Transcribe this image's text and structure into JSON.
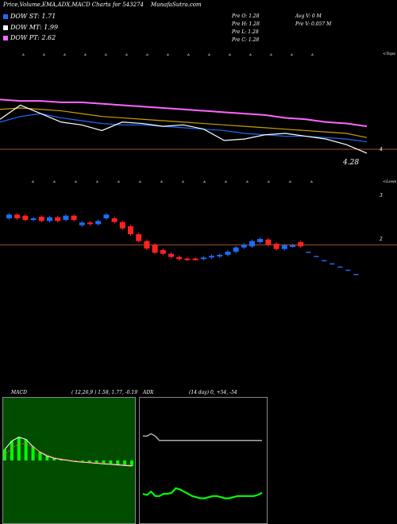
{
  "header": {
    "title": "Price,Volume,EMA,ADX,MACD Charts for 543274",
    "site": "MunafaSutra.com"
  },
  "legend": [
    {
      "label": "DOW ST: 1.71",
      "color": "#1e6bff"
    },
    {
      "label": "DOW MT: 1.99",
      "color": "#ffffff"
    },
    {
      "label": "DOW PT: 2.62",
      "color": "#ff66ff"
    }
  ],
  "stats": {
    "col1": [
      "Pre   O: 1.28",
      "Pre   H: 1.28",
      "Pre   L: 1.28",
      "Pre   C: 1.28"
    ],
    "col2": [
      "Avg V: 0   M",
      "Pre   V: 0.057 M"
    ]
  },
  "chart_data": [
    {
      "type": "line",
      "title": "",
      "axis_labels": {
        "top_tag": "<Tops",
        "bottom_tag": "<Lows",
        "ticks": [
          "4"
        ]
      },
      "price_label": "4.28",
      "series": [
        {
          "color": "#ff66ff",
          "values": [
            4.62,
            4.61,
            4.61,
            4.6,
            4.6,
            4.59,
            4.58,
            4.57,
            4.56,
            4.55,
            4.54,
            4.53,
            4.52,
            4.51,
            4.49,
            4.48,
            4.46,
            4.45,
            4.43
          ]
        },
        {
          "color": "#c8a000",
          "values": [
            4.55,
            4.56,
            4.55,
            4.54,
            4.52,
            4.5,
            4.49,
            4.48,
            4.47,
            4.46,
            4.45,
            4.44,
            4.43,
            4.42,
            4.41,
            4.4,
            4.39,
            4.38,
            4.35
          ]
        },
        {
          "color": "#1e6bff",
          "values": [
            4.46,
            4.5,
            4.52,
            4.49,
            4.47,
            4.45,
            4.44,
            4.44,
            4.43,
            4.42,
            4.41,
            4.4,
            4.38,
            4.37,
            4.36,
            4.36,
            4.35,
            4.34,
            4.32
          ]
        },
        {
          "color": "#ffffff",
          "values": [
            4.48,
            4.58,
            4.52,
            4.46,
            4.44,
            4.4,
            4.46,
            4.45,
            4.43,
            4.44,
            4.41,
            4.33,
            4.34,
            4.37,
            4.38,
            4.36,
            4.34,
            4.3,
            4.24
          ]
        }
      ],
      "mark_annotations_top": [
        "A",
        "A",
        "A",
        "A",
        "A",
        "A",
        "A",
        "A",
        "A",
        "A",
        "A",
        "A",
        "A",
        "A",
        "A"
      ],
      "mark_annotations_bottom": [
        "A",
        "A",
        "A",
        "A",
        "A",
        "A",
        "A",
        "A",
        "A",
        "A",
        "A",
        "A",
        "A",
        "A"
      ]
    },
    {
      "type": "bar",
      "title": "",
      "axis_labels": {
        "ticks": [
          "3",
          "2"
        ],
        "bottom_tag": "<Lows"
      },
      "reference_line": 2.05,
      "candles": [
        {
          "o": 2.55,
          "c": 2.62,
          "dir": "up"
        },
        {
          "o": 2.62,
          "c": 2.55,
          "dir": "down"
        },
        {
          "o": 2.6,
          "c": 2.52,
          "dir": "down"
        },
        {
          "o": 2.52,
          "c": 2.55,
          "dir": "up"
        },
        {
          "o": 2.58,
          "c": 2.5,
          "dir": "down"
        },
        {
          "o": 2.5,
          "c": 2.57,
          "dir": "up"
        },
        {
          "o": 2.57,
          "c": 2.5,
          "dir": "down"
        },
        {
          "o": 2.52,
          "c": 2.6,
          "dir": "up"
        },
        {
          "o": 2.6,
          "c": 2.52,
          "dir": "down"
        },
        {
          "o": 2.42,
          "c": 2.47,
          "dir": "up"
        },
        {
          "o": 2.47,
          "c": 2.44,
          "dir": "down"
        },
        {
          "o": 2.44,
          "c": 2.5,
          "dir": "up"
        },
        {
          "o": 2.55,
          "c": 2.62,
          "dir": "up"
        },
        {
          "o": 2.55,
          "c": 2.48,
          "dir": "down"
        },
        {
          "o": 2.48,
          "c": 2.36,
          "dir": "down"
        },
        {
          "o": 2.4,
          "c": 2.25,
          "dir": "down"
        },
        {
          "o": 2.25,
          "c": 2.12,
          "dir": "down"
        },
        {
          "o": 2.12,
          "c": 1.98,
          "dir": "down"
        },
        {
          "o": 2.05,
          "c": 1.9,
          "dir": "down"
        },
        {
          "o": 1.95,
          "c": 1.88,
          "dir": "down"
        },
        {
          "o": 1.88,
          "c": 1.82,
          "dir": "down"
        },
        {
          "o": 1.82,
          "c": 1.78,
          "dir": "down"
        },
        {
          "o": 1.79,
          "c": 1.78,
          "dir": "down"
        },
        {
          "o": 1.79,
          "c": 1.78,
          "dir": "down"
        },
        {
          "o": 1.78,
          "c": 1.81,
          "dir": "up"
        },
        {
          "o": 1.81,
          "c": 1.84,
          "dir": "up"
        },
        {
          "o": 1.83,
          "c": 1.86,
          "dir": "up"
        },
        {
          "o": 1.86,
          "c": 1.92,
          "dir": "up"
        },
        {
          "o": 1.92,
          "c": 2.0,
          "dir": "up"
        },
        {
          "o": 2.0,
          "c": 2.05,
          "dir": "up"
        },
        {
          "o": 2.02,
          "c": 2.12,
          "dir": "up"
        },
        {
          "o": 2.1,
          "c": 2.16,
          "dir": "up"
        },
        {
          "o": 2.15,
          "c": 2.05,
          "dir": "down"
        },
        {
          "o": 2.07,
          "c": 1.97,
          "dir": "down"
        },
        {
          "o": 1.97,
          "c": 2.04,
          "dir": "up"
        },
        {
          "o": 2.03,
          "c": 2.04,
          "dir": "up"
        },
        {
          "o": 2.1,
          "c": 2.02,
          "dir": "down"
        }
      ],
      "projection": [
        1.92,
        1.84,
        1.76,
        1.7,
        1.64,
        1.58,
        1.5
      ]
    },
    {
      "type": "line",
      "title": "MACD",
      "params": "( 12,26,9 ) 1.58, 1.77, -0.19",
      "background": "#004d00",
      "series": [
        {
          "color": "#ffffff",
          "values": [
            0.2,
            0.35,
            0.42,
            0.38,
            0.25,
            0.15,
            0.08,
            0.04,
            0.02,
            0.0,
            -0.02,
            -0.03,
            -0.04,
            -0.05,
            -0.06,
            -0.07,
            -0.08,
            -0.09,
            -0.1
          ]
        },
        {
          "color": "#ff4d4d",
          "values": [
            0.1,
            0.22,
            0.3,
            0.3,
            0.24,
            0.16,
            0.1,
            0.05,
            0.03,
            0.01,
            -0.01,
            -0.02,
            -0.03,
            -0.04,
            -0.05,
            -0.06,
            -0.06,
            -0.07,
            -0.08
          ]
        }
      ],
      "histogram_color": "#00ff00"
    },
    {
      "type": "line",
      "title": "ADX",
      "params": "(14 day) 0, +54, -54",
      "series": [
        {
          "color": "#aaaaaa",
          "values": [
            72,
            72,
            74,
            72,
            68,
            68,
            68,
            68,
            68,
            68,
            68,
            68,
            68,
            68,
            68,
            68,
            68,
            68,
            68,
            68,
            68,
            68,
            68,
            68,
            68,
            68,
            68,
            68,
            68,
            68
          ]
        },
        {
          "color": "#00ff00",
          "values": [
            20,
            19,
            22,
            18,
            18,
            20,
            20,
            21,
            25,
            24,
            22,
            20,
            18,
            17,
            16,
            16,
            17,
            18,
            18,
            17,
            16,
            16,
            17,
            18,
            18,
            18,
            18,
            18,
            19,
            21
          ]
        }
      ]
    }
  ]
}
